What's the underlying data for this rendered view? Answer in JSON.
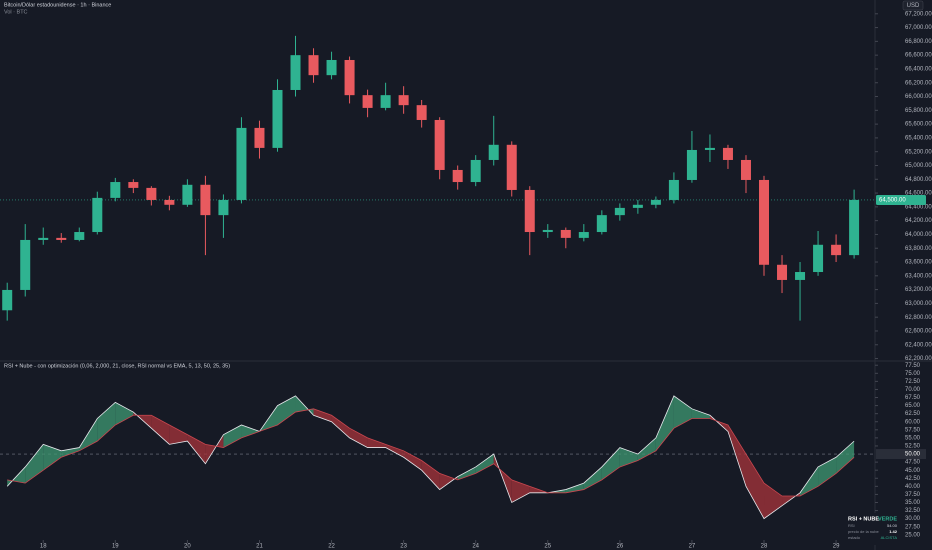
{
  "header": {
    "symbol_line": "Bitcoin/Dólar estadounidense · 1h · Binance",
    "volume_line": "Vol · BTC"
  },
  "currency": "USD",
  "chart_data": [
    {
      "type": "candlestick",
      "x": [
        17.5,
        17.75,
        18,
        18.25,
        18.5,
        18.75,
        19,
        19.25,
        19.5,
        19.75,
        20,
        20.25,
        20.5,
        20.75,
        21,
        21.25,
        21.5,
        21.75,
        22,
        22.25,
        22.5,
        22.75,
        23,
        23.25,
        23.5,
        23.75,
        24,
        24.25,
        24.5,
        24.75,
        25,
        25.25,
        25.5,
        25.75,
        26,
        26.25,
        26.5,
        26.75,
        27,
        27.25,
        27.5,
        27.75,
        28,
        28.25,
        28.5,
        28.75,
        29,
        29.25
      ],
      "open": [
        62900,
        63195,
        63920,
        63950,
        63920,
        64035,
        64530,
        64760,
        64675,
        64500,
        64430,
        64720,
        64280,
        64500,
        65545,
        65255,
        66095,
        66600,
        66310,
        66530,
        66020,
        65835,
        66020,
        65875,
        65660,
        64935,
        64760,
        65080,
        65300,
        64645,
        64035,
        64065,
        63950,
        64035,
        64280,
        64385,
        64430,
        64500,
        64790,
        65225,
        65255,
        65080,
        64790,
        63560,
        63340,
        63455,
        63850,
        63700
      ],
      "high": [
        63300,
        64150,
        64100,
        64020,
        64100,
        64620,
        64820,
        64800,
        64700,
        64560,
        64800,
        64850,
        64580,
        65700,
        65650,
        66250,
        66880,
        66700,
        66650,
        66580,
        66100,
        66200,
        66150,
        65950,
        65700,
        65000,
        65150,
        65720,
        65350,
        64700,
        64150,
        64100,
        64150,
        64350,
        64450,
        64500,
        64550,
        64900,
        65500,
        65450,
        65300,
        65150,
        64850,
        63700,
        63600,
        64050,
        64000,
        64650
      ],
      "low": [
        62750,
        63100,
        63850,
        63880,
        63900,
        64000,
        64480,
        64600,
        64420,
        64350,
        64400,
        63700,
        63950,
        64450,
        65100,
        65200,
        66000,
        66200,
        66250,
        65900,
        65700,
        65800,
        65750,
        65550,
        64800,
        64650,
        64700,
        65000,
        64550,
        63700,
        63950,
        63800,
        63900,
        64000,
        64200,
        64300,
        64380,
        64450,
        64750,
        65050,
        64950,
        64600,
        63400,
        63150,
        62750,
        63400,
        63600,
        63650
      ],
      "close": [
        63195,
        63920,
        63950,
        63920,
        64035,
        64530,
        64760,
        64675,
        64500,
        64430,
        64720,
        64280,
        64500,
        65545,
        65255,
        66095,
        66600,
        66310,
        66530,
        66020,
        65835,
        66020,
        65875,
        65660,
        64935,
        64760,
        65080,
        65300,
        64645,
        64035,
        64065,
        63950,
        64035,
        64280,
        64385,
        64430,
        64500,
        64790,
        65225,
        65255,
        65080,
        64790,
        63560,
        63340,
        63455,
        63850,
        63700,
        64500
      ],
      "up_color": "#2fb391",
      "down_color": "#e85a5f",
      "xlim": [
        17.4,
        29.54
      ],
      "ylim": [
        62150,
        67400
      ],
      "yticks": [
        {
          "value": 62200,
          "label": "62,200.00"
        },
        {
          "value": 62400,
          "label": "62,400.00"
        },
        {
          "value": 62600,
          "label": "62,600.00"
        },
        {
          "value": 62800,
          "label": "62,800.00"
        },
        {
          "value": 63000,
          "label": "63,000.00"
        },
        {
          "value": 63200,
          "label": "63,200.00"
        },
        {
          "value": 63400,
          "label": "63,400.00"
        },
        {
          "value": 63600,
          "label": "63,600.00"
        },
        {
          "value": 63800,
          "label": "63,800.00"
        },
        {
          "value": 64000,
          "label": "64,000.00"
        },
        {
          "value": 64200,
          "label": "64,200.00"
        },
        {
          "value": 64400,
          "label": "64,400.00"
        },
        {
          "value": 64600,
          "label": "64,600.00"
        },
        {
          "value": 64800,
          "label": "64,800.00"
        },
        {
          "value": 65000,
          "label": "65,000.00"
        },
        {
          "value": 65200,
          "label": "65,200.00"
        },
        {
          "value": 65400,
          "label": "65,400.00"
        },
        {
          "value": 65600,
          "label": "65,600.00"
        },
        {
          "value": 65800,
          "label": "65,800.00"
        },
        {
          "value": 66000,
          "label": "66,000.00"
        },
        {
          "value": 66200,
          "label": "66,200.00"
        },
        {
          "value": 66400,
          "label": "66,400.00"
        },
        {
          "value": 66600,
          "label": "66,600.00"
        },
        {
          "value": 66800,
          "label": "66,800.00"
        },
        {
          "value": 67000,
          "label": "67,000.00"
        },
        {
          "value": 67200,
          "label": "67,200.00"
        }
      ],
      "last_price": {
        "value": 64500,
        "label": "64,500.00"
      }
    },
    {
      "type": "rsi-cloud",
      "title": "RSI + Nube - con optimización (0,06, 2,000, 21, close, RSI normal vs EMA, 5, 13, 50, 25, 35)",
      "x": [
        17.5,
        17.75,
        18,
        18.25,
        18.5,
        18.75,
        19,
        19.25,
        19.5,
        19.75,
        20,
        20.25,
        20.5,
        20.75,
        21,
        21.25,
        21.5,
        21.75,
        22,
        22.25,
        22.5,
        22.75,
        23,
        23.25,
        23.5,
        23.75,
        24,
        24.25,
        24.5,
        24.75,
        25,
        25.25,
        25.5,
        25.75,
        26,
        26.25,
        26.5,
        26.75,
        27,
        27.25,
        27.5,
        27.75,
        28,
        28.25,
        28.5,
        28.75,
        29,
        29.25
      ],
      "series": [
        {
          "color": "#e6e8ec",
          "values": [
            40,
            46,
            53,
            51,
            52,
            61,
            66,
            63,
            58,
            53,
            54,
            47,
            56,
            59,
            57,
            65,
            68,
            62,
            60,
            55,
            52,
            52,
            49,
            45,
            39,
            43,
            46,
            50,
            35,
            38,
            38,
            39,
            41,
            46,
            52,
            50,
            55,
            68,
            64,
            62,
            57,
            40,
            30,
            34,
            38,
            46,
            49,
            54
          ]
        },
        {
          "color": "#c9474f",
          "values": [
            42,
            41,
            45,
            49,
            51,
            54,
            59,
            62,
            62,
            59,
            56,
            53,
            52,
            55,
            57,
            59,
            63,
            64,
            62,
            58,
            55,
            53,
            51,
            48,
            44,
            42,
            44,
            47,
            42,
            40,
            38,
            38,
            39,
            42,
            46,
            48,
            51,
            58,
            61,
            61,
            59,
            50,
            41,
            37,
            37,
            40,
            44,
            49
          ]
        }
      ],
      "fill_up": "#3f9a73",
      "fill_down": "#a8343b",
      "xlim": [
        17.4,
        29.54
      ],
      "ylim": [
        24,
        78.5
      ],
      "yticks": [
        {
          "value": 25,
          "label": "25.00"
        },
        {
          "value": 27.5,
          "label": "27.50"
        },
        {
          "value": 30,
          "label": "30.00"
        },
        {
          "value": 32.5,
          "label": "32.50"
        },
        {
          "value": 35,
          "label": "35.00"
        },
        {
          "value": 37.5,
          "label": "37.50"
        },
        {
          "value": 40,
          "label": "40.00"
        },
        {
          "value": 42.5,
          "label": "42.50"
        },
        {
          "value": 45,
          "label": "45.00"
        },
        {
          "value": 47.5,
          "label": "47.50"
        },
        {
          "value": 52.5,
          "label": "52.50"
        },
        {
          "value": 55,
          "label": "55.00"
        },
        {
          "value": 57.5,
          "label": "57.50"
        },
        {
          "value": 60,
          "label": "60.00"
        },
        {
          "value": 62.5,
          "label": "62.50"
        },
        {
          "value": 65,
          "label": "65.00"
        },
        {
          "value": 67.5,
          "label": "67.50"
        },
        {
          "value": 70,
          "label": "70.00"
        },
        {
          "value": 72.5,
          "label": "72.50"
        },
        {
          "value": 75,
          "label": "75.00"
        },
        {
          "value": 77.5,
          "label": "77.50"
        }
      ],
      "level": {
        "value": 50,
        "label": "50.00"
      },
      "xticks": [
        18,
        19,
        20,
        21,
        22,
        23,
        24,
        25,
        26,
        27,
        28,
        29
      ]
    }
  ],
  "table": {
    "title": "RSI + NUBE",
    "status": "VERDE",
    "rows": [
      [
        "RSI",
        "54.00"
      ],
      [
        "precio de la nube",
        "1.42"
      ],
      [
        "estado",
        "ALCISTA"
      ]
    ]
  }
}
